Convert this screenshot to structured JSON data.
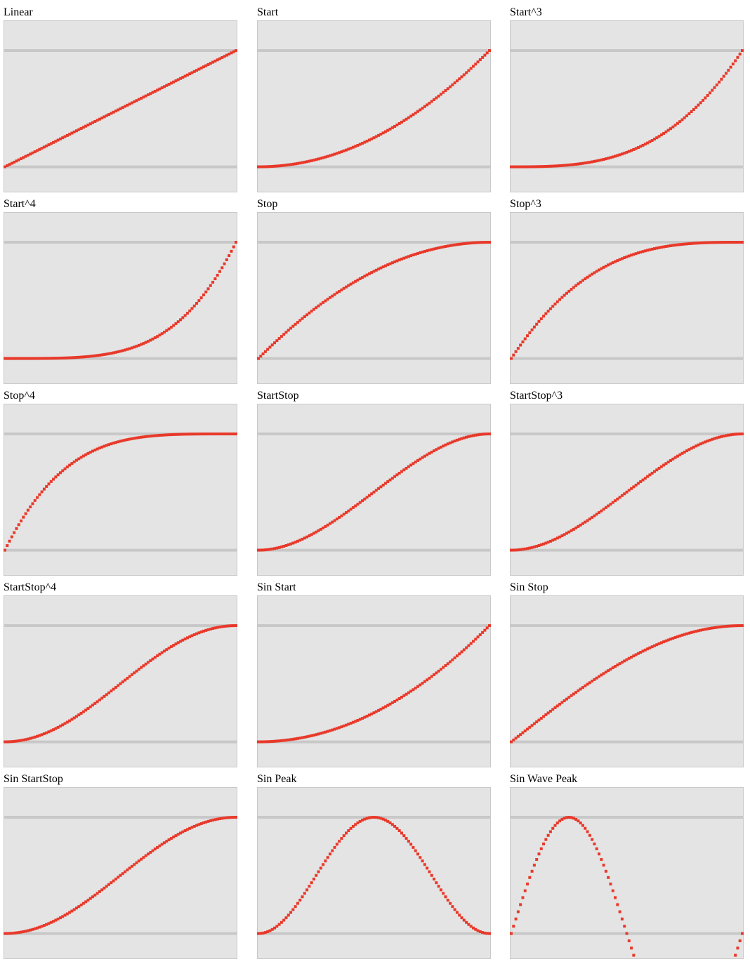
{
  "colors": {
    "panel_background": "#e4e4e4",
    "panel_border": "#c9c9c9",
    "reference_line": "#c8c8c8",
    "curve": "#e8392a"
  },
  "chart_data": [
    {
      "type": "scatter",
      "title": "Linear",
      "easing": "linear",
      "ylim": [
        -0.22,
        1.26
      ],
      "samples": 101
    },
    {
      "type": "scatter",
      "title": "Start",
      "easing": "start",
      "ylim": [
        -0.22,
        1.26
      ],
      "samples": 101
    },
    {
      "type": "scatter",
      "title": "Start^3",
      "easing": "start3",
      "ylim": [
        -0.22,
        1.26
      ],
      "samples": 101
    },
    {
      "type": "scatter",
      "title": "Start^4",
      "easing": "start4",
      "ylim": [
        -0.22,
        1.26
      ],
      "samples": 101
    },
    {
      "type": "scatter",
      "title": "Stop",
      "easing": "stop",
      "ylim": [
        -0.22,
        1.26
      ],
      "samples": 101
    },
    {
      "type": "scatter",
      "title": "Stop^3",
      "easing": "stop3",
      "ylim": [
        -0.22,
        1.26
      ],
      "samples": 101
    },
    {
      "type": "scatter",
      "title": "Stop^4",
      "easing": "stop4",
      "ylim": [
        -0.22,
        1.26
      ],
      "samples": 101
    },
    {
      "type": "scatter",
      "title": "StartStop",
      "easing": "startstop",
      "ylim": [
        -0.22,
        1.26
      ],
      "samples": 101
    },
    {
      "type": "scatter",
      "title": "StartStop^3",
      "easing": "startstop3",
      "ylim": [
        -0.22,
        1.26
      ],
      "samples": 101
    },
    {
      "type": "scatter",
      "title": "StartStop^4",
      "easing": "startstop4",
      "ylim": [
        -0.22,
        1.26
      ],
      "samples": 101
    },
    {
      "type": "scatter",
      "title": "Sin Start",
      "easing": "sinstart",
      "ylim": [
        -0.22,
        1.26
      ],
      "samples": 101
    },
    {
      "type": "scatter",
      "title": "Sin Stop",
      "easing": "sinstop",
      "ylim": [
        -0.22,
        1.26
      ],
      "samples": 101
    },
    {
      "type": "scatter",
      "title": "Sin StartStop",
      "easing": "sinstartstop",
      "ylim": [
        -0.22,
        1.26
      ],
      "samples": 101
    },
    {
      "type": "scatter",
      "title": "Sin Peak",
      "easing": "sinpeak",
      "ylim": [
        -0.22,
        1.26
      ],
      "samples": 101
    },
    {
      "type": "scatter",
      "title": "Sin Wave Peak",
      "easing": "sinwavepeak",
      "ylim": [
        -0.22,
        1.26
      ],
      "samples": 101
    }
  ]
}
